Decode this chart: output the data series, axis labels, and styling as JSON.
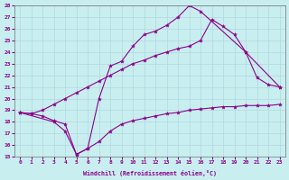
{
  "xlabel": "Windchill (Refroidissement éolien,°C)",
  "xlim": [
    -0.5,
    23.5
  ],
  "ylim": [
    15,
    28
  ],
  "xticks": [
    0,
    1,
    2,
    3,
    4,
    5,
    6,
    7,
    8,
    9,
    10,
    11,
    12,
    13,
    14,
    15,
    16,
    17,
    18,
    19,
    20,
    21,
    22,
    23
  ],
  "yticks": [
    15,
    16,
    17,
    18,
    19,
    20,
    21,
    22,
    23,
    24,
    25,
    26,
    27,
    28
  ],
  "bg_color": "#c8eef0",
  "grid_color": "#b0d8dc",
  "line_color": "#8b008b",
  "curve1_x": [
    0,
    1,
    2,
    3,
    4,
    5,
    6,
    7,
    8,
    9,
    10,
    11,
    12,
    13,
    14,
    15,
    16,
    17,
    18,
    19,
    20,
    21,
    22,
    23
  ],
  "curve1_y": [
    18.8,
    18.7,
    18.5,
    18.1,
    17.8,
    15.2,
    15.7,
    16.3,
    17.2,
    17.8,
    18.1,
    18.3,
    18.5,
    18.7,
    18.8,
    19.0,
    19.1,
    19.2,
    19.3,
    19.3,
    19.4,
    19.4,
    19.4,
    19.5
  ],
  "curve2_x": [
    0,
    3,
    4,
    5,
    6,
    7,
    8,
    9,
    10,
    11,
    12,
    13,
    14,
    15,
    16,
    20,
    23
  ],
  "curve2_y": [
    18.8,
    18.0,
    17.2,
    15.2,
    15.7,
    20.0,
    22.8,
    23.2,
    24.5,
    25.5,
    25.8,
    26.3,
    27.0,
    28.0,
    27.5,
    24.0,
    21.0
  ],
  "curve3_x": [
    0,
    1,
    2,
    3,
    4,
    5,
    6,
    7,
    8,
    9,
    10,
    11,
    12,
    13,
    14,
    15,
    16,
    17,
    18,
    19,
    20,
    21,
    22,
    23
  ],
  "curve3_y": [
    18.8,
    18.7,
    19.0,
    19.5,
    20.0,
    20.5,
    21.0,
    21.5,
    22.0,
    22.5,
    23.0,
    23.3,
    23.7,
    24.0,
    24.3,
    24.5,
    25.0,
    26.8,
    26.2,
    25.5,
    24.0,
    21.8,
    21.2,
    21.0
  ]
}
